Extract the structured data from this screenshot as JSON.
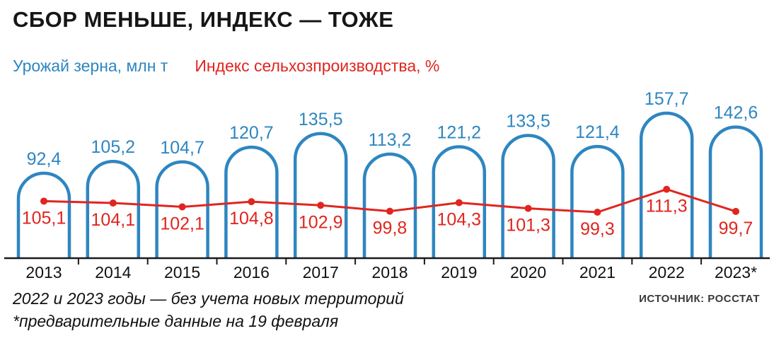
{
  "title": "СБОР МЕНЬШЕ, ИНДЕКС — ТОЖЕ",
  "legend": {
    "harvest_label": "Урожай зерна, млн т",
    "index_label": "Индекс сельхозпроизводства, %"
  },
  "colors": {
    "harvest": "#2e86c1",
    "index": "#e0251f",
    "axis": "#1a1a1a",
    "text": "#111111"
  },
  "chart_data": {
    "type": "bar",
    "categories": [
      "2013",
      "2014",
      "2015",
      "2016",
      "2017",
      "2018",
      "2019",
      "2020",
      "2021",
      "2022",
      "2023*"
    ],
    "series": [
      {
        "name": "Урожай зерна, млн т",
        "type": "bar",
        "color": "#2e86c1",
        "values": [
          92.4,
          105.2,
          104.7,
          120.7,
          135.5,
          113.2,
          121.2,
          133.5,
          121.4,
          157.7,
          142.6
        ]
      },
      {
        "name": "Индекс сельхозпроизводства, %",
        "type": "line",
        "color": "#e0251f",
        "values": [
          105.1,
          104.1,
          102.1,
          104.8,
          102.9,
          99.8,
          104.3,
          101.3,
          99.3,
          111.3,
          99.7
        ]
      }
    ],
    "ylim_bars": [
      0,
      160
    ],
    "decimal_separator": ",",
    "legend_position": "top-left",
    "grid": false
  },
  "footnotes": {
    "line1": "2022 и 2023 годы — без учета новых территорий",
    "line2": "*предварительные данные на 19 февраля"
  },
  "source": "ИСТОЧНИК: РОССТАТ"
}
